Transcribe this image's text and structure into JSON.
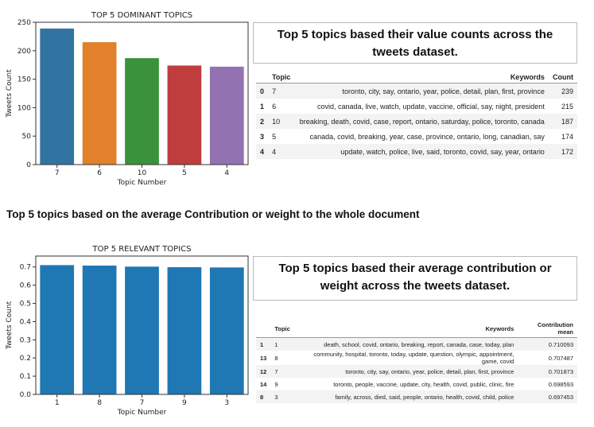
{
  "chart_data": [
    {
      "type": "bar",
      "title": "TOP 5 DOMINANT TOPICS",
      "x_label": "Topic Number",
      "y_label": "Tweets Count",
      "categories": [
        "7",
        "6",
        "10",
        "5",
        "4"
      ],
      "values": [
        239,
        215,
        187,
        174,
        172
      ],
      "colors": [
        "#3274a1",
        "#e1812c",
        "#3a923a",
        "#c03d3e",
        "#9372b2"
      ],
      "ylim": [
        0,
        250
      ],
      "yticks": [
        0,
        50,
        100,
        150,
        200,
        250
      ]
    },
    {
      "type": "bar",
      "title": "TOP 5 RELEVANT TOPICS",
      "x_label": "Topic Number",
      "y_label": "Tweets Count",
      "categories": [
        "1",
        "8",
        "7",
        "9",
        "3"
      ],
      "values": [
        0.710093,
        0.707487,
        0.701873,
        0.698593,
        0.697453
      ],
      "colors": [
        "#1f77b4",
        "#1f77b4",
        "#1f77b4",
        "#1f77b4",
        "#1f77b4"
      ],
      "ylim": [
        0,
        0.76
      ],
      "yticks": [
        {
          "value": 0,
          "label": "0.0"
        },
        0.1,
        0.2,
        0.3,
        0.4,
        0.5,
        0.6,
        0.7
      ]
    }
  ],
  "panels": [
    {
      "heading": "Top 5 topics based their value counts across the tweets dataset.",
      "table": {
        "columns": [
          "Topic",
          "Keywords",
          "Count"
        ],
        "rows": [
          [
            "0",
            "7",
            "toronto, city, say, ontario, year, police, detail, plan, first, province",
            "239"
          ],
          [
            "1",
            "6",
            "covid, canada, live, watch, update, vaccine, official, say, night, president",
            "215"
          ],
          [
            "2",
            "10",
            "breaking, death, covid, case, report, ontario, saturday, police, toronto, canada",
            "187"
          ],
          [
            "3",
            "5",
            "canada, covid, breaking, year, case, province, ontario, long, canadian, say",
            "174"
          ],
          [
            "4",
            "4",
            "update, watch, police, live, said, toronto, covid, say, year, ontario",
            "172"
          ]
        ]
      }
    },
    {
      "heading": "Top 5 topics based their average contribution or weight across the tweets dataset.",
      "table": {
        "columns": [
          "Topic",
          "Keywords",
          "Contribution mean"
        ],
        "rows": [
          [
            "1",
            "1",
            "death, school, covid, ontario, breaking, report, canada, case, today, plan",
            "0.710093"
          ],
          [
            "13",
            "8",
            "community, hospital, toronto, today, update, question, olympic, appointment, game, covid",
            "0.707487"
          ],
          [
            "12",
            "7",
            "toronto, city, say, ontario, year, police, detail, plan, first, province",
            "0.701873"
          ],
          [
            "14",
            "9",
            "toronto, people, vaccine, update, city, health, covid, public, clinic, fire",
            "0.698593"
          ],
          [
            "8",
            "3",
            "family, across, died, said, people, ontario, health, covid, child, police",
            "0.697453"
          ]
        ]
      }
    }
  ],
  "section_heading": "Top 5 topics based on the average Contribution or weight to the whole document"
}
